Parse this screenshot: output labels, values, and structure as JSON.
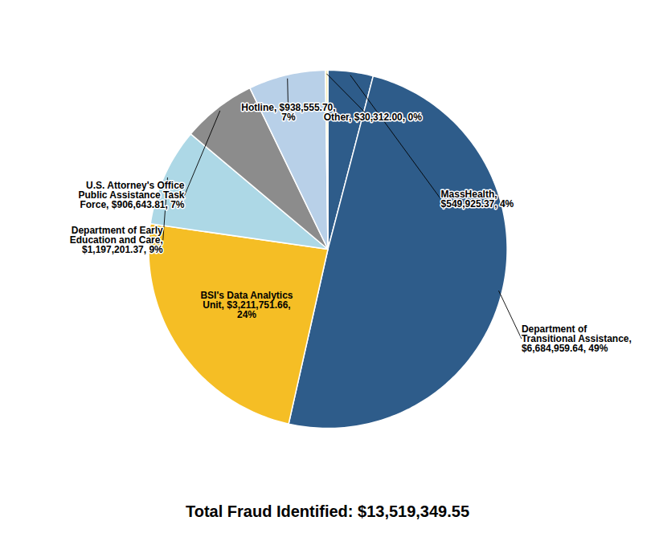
{
  "chart_data": {
    "type": "pie",
    "title": "Total Fraud Identified: $13,519,349.55",
    "categories": [
      "MassHealth,\n$549,925.37, 4%",
      "Department of\nTransitional Assistance,\n$6,684,959.64, 49%",
      "BSI's Data Analytics\nUnit, $3,211,751.66,\n24%",
      "Department of Early\nEducation and Care,\n$1,197,201.37, 9%",
      "U.S. Attorney's Office\nPublic Assistance Task\nForce, $906,643.81, 7%",
      "Hotline, $938,555.70,\n7%",
      "Other, $30,312.00, 0%"
    ],
    "values": [
      549925.37,
      6684959.64,
      3211751.66,
      1197201.37,
      906643.81,
      938555.7,
      30312.0
    ],
    "colors": [
      "#2E5C8A",
      "#2E5C8A",
      "#F5BE25",
      "#ADD8E6",
      "#8C8C8C",
      "#B8D0E8",
      "#FAEDB5"
    ]
  }
}
